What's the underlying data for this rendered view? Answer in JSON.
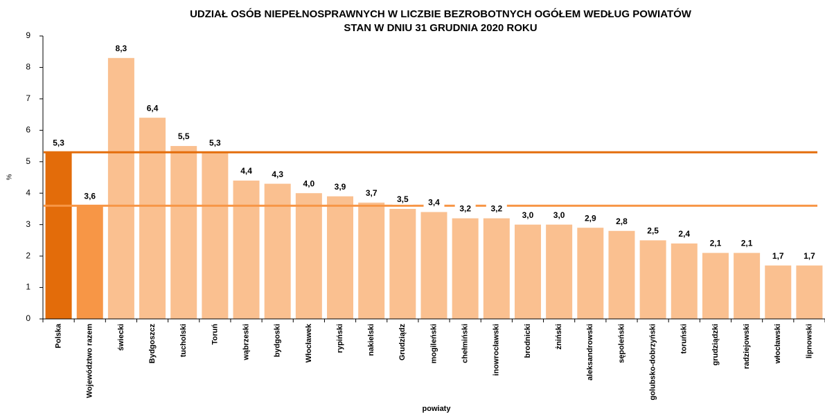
{
  "chart_data": {
    "type": "bar",
    "title": "UDZIAŁ OSÓB NIEPEŁNOSPRAWNYCH W LICZBIE BEZROBOTNYCH OGÓŁEM WEDŁUG POWIATÓW",
    "subtitle": "STAN W DNIU 31 GRUDNIA 2020 ROKU",
    "x_label": "powiaty",
    "y_label": "%",
    "categories": [
      "Polska",
      "Województwo razem",
      "świecki",
      "Bydgoszcz",
      "tucholski",
      "Toruń",
      "wąbrzeski",
      "bydgoski",
      "Włocławek",
      "rypiński",
      "nakielski",
      "Grudziądz",
      "mogileński",
      "chełmiński",
      "inowrocławski",
      "brodnicki",
      "żniński",
      "aleksandrowski",
      "sępoleński",
      "golubsko-dobrzyński",
      "toruński",
      "grudziądzki",
      "radziejowski",
      "włocławski",
      "lipnowski"
    ],
    "values": [
      5.3,
      3.6,
      8.3,
      6.4,
      5.5,
      5.3,
      4.4,
      4.3,
      4.0,
      3.9,
      3.7,
      3.5,
      3.4,
      3.2,
      3.2,
      3.0,
      3.0,
      2.9,
      2.8,
      2.5,
      2.4,
      2.1,
      2.1,
      1.7,
      1.7
    ],
    "value_labels": [
      "5,3",
      "3,6",
      "8,3",
      "6,4",
      "5,5",
      "5,3",
      "4,4",
      "4,3",
      "4,0",
      "3,9",
      "3,7",
      "3,5",
      "3,4",
      "3,2",
      "3,2",
      "3,0",
      "3,0",
      "2,9",
      "2,8",
      "2,5",
      "2,4",
      "2,1",
      "2,1",
      "1,7",
      "1,7"
    ],
    "colors": {
      "country": "#e36c0a",
      "region": "#f79646",
      "district": "#fac090"
    },
    "ylim": [
      0,
      9
    ],
    "yticks": [
      0,
      1,
      2,
      3,
      4,
      5,
      6,
      7,
      8,
      9
    ]
  }
}
